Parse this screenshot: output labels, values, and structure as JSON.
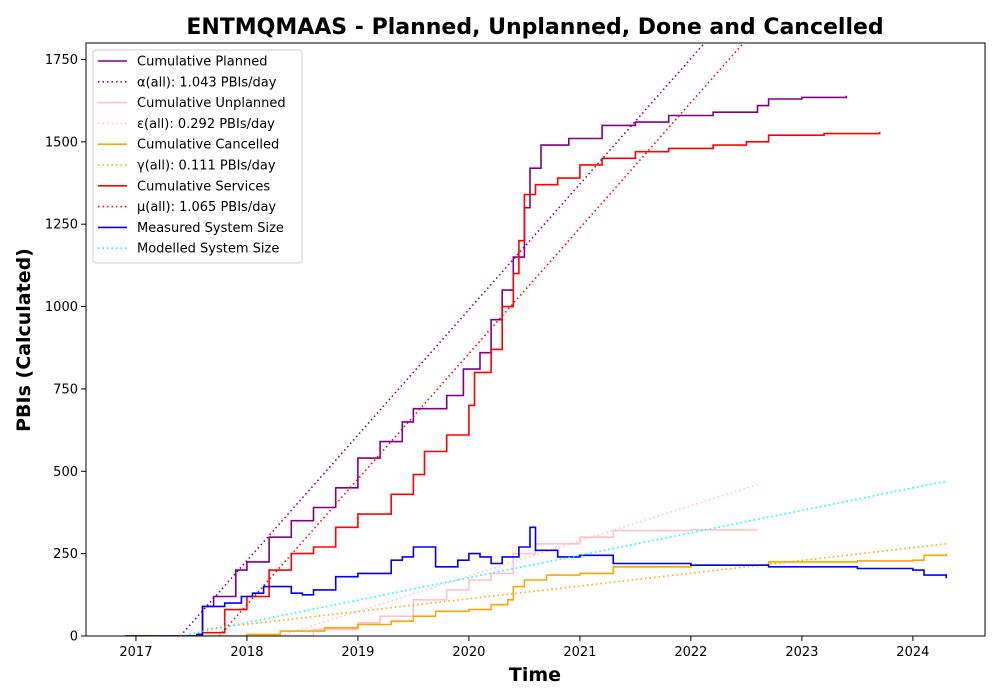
{
  "chart_data": {
    "type": "line",
    "title": "ENTMQMAAS - Planned, Unplanned, Done  and Cancelled",
    "xlabel": "Time",
    "ylabel": "PBIs (Calculated)",
    "xlim": [
      2016.55,
      2024.65
    ],
    "ylim": [
      0,
      1800
    ],
    "x_ticks": [
      2017,
      2018,
      2019,
      2020,
      2021,
      2022,
      2023,
      2024
    ],
    "x_tick_labels": [
      "2017",
      "2018",
      "2019",
      "2020",
      "2021",
      "2022",
      "2023",
      "2024"
    ],
    "y_ticks": [
      0,
      250,
      500,
      750,
      1000,
      1250,
      1500,
      1750
    ],
    "y_tick_labels": [
      "0",
      "250",
      "500",
      "750",
      "1000",
      "1250",
      "1500",
      "1750"
    ],
    "grid": false,
    "legend_position": "top-left",
    "series": [
      {
        "name": "Cumulative Planned",
        "color": "#800080",
        "style": "solid",
        "x": [
          2016.9,
          2017.55,
          2017.6,
          2017.7,
          2017.9,
          2018.0,
          2018.2,
          2018.4,
          2018.6,
          2018.8,
          2019.0,
          2019.2,
          2019.4,
          2019.5,
          2019.8,
          2019.95,
          2020.1,
          2020.2,
          2020.3,
          2020.4,
          2020.5,
          2020.55,
          2020.65,
          2020.9,
          2021.2,
          2021.5,
          2021.8,
          2022.2,
          2022.6,
          2022.7,
          2023.0,
          2023.4
        ],
        "y": [
          0,
          5,
          90,
          120,
          200,
          225,
          300,
          350,
          390,
          450,
          540,
          590,
          650,
          690,
          730,
          810,
          860,
          960,
          1050,
          1150,
          1300,
          1420,
          1490,
          1510,
          1550,
          1560,
          1580,
          1590,
          1610,
          1630,
          1635,
          1640
        ]
      },
      {
        "name": "α(all): 1.043 PBIs/day",
        "color": "#800080",
        "style": "dotted",
        "x": [
          2017.4,
          2022.15
        ],
        "y": [
          0,
          1810
        ]
      },
      {
        "name": "Cumulative Unplanned",
        "color": "#ffc0cb",
        "style": "solid",
        "x": [
          2018.3,
          2018.6,
          2019.0,
          2019.2,
          2019.5,
          2019.8,
          2020.0,
          2020.2,
          2020.4,
          2020.6,
          2021.0,
          2021.3,
          2022.0,
          2022.6
        ],
        "y": [
          0,
          20,
          40,
          60,
          110,
          140,
          170,
          190,
          250,
          280,
          300,
          320,
          322,
          322
        ]
      },
      {
        "name": "ε(all): 0.292 PBIs/day",
        "color": "#ffc0cb",
        "style": "dotted",
        "x": [
          2018.3,
          2022.6
        ],
        "y": [
          0,
          460
        ]
      },
      {
        "name": "Cumulative Cancelled",
        "color": "#ffa500",
        "style": "solid",
        "x": [
          2017.6,
          2018.0,
          2018.3,
          2018.7,
          2019.0,
          2019.3,
          2019.5,
          2019.7,
          2020.0,
          2020.2,
          2020.35,
          2020.4,
          2020.5,
          2020.7,
          2021.0,
          2021.3,
          2022.0,
          2022.7,
          2023.5,
          2024.0,
          2024.1,
          2024.3
        ],
        "y": [
          0,
          5,
          15,
          25,
          35,
          45,
          60,
          75,
          80,
          95,
          110,
          150,
          170,
          185,
          190,
          210,
          215,
          225,
          228,
          230,
          245,
          250
        ]
      },
      {
        "name": "γ(all): 0.111 PBIs/day",
        "color": "#ffa500",
        "style": "dotted",
        "x": [
          2017.6,
          2024.3
        ],
        "y": [
          20,
          280
        ]
      },
      {
        "name": "Cumulative Services",
        "color": "#ff0000",
        "style": "solid",
        "x": [
          2017.3,
          2017.6,
          2017.8,
          2018.0,
          2018.2,
          2018.4,
          2018.6,
          2018.8,
          2019.0,
          2019.3,
          2019.5,
          2019.6,
          2019.8,
          2020.0,
          2020.05,
          2020.2,
          2020.3,
          2020.4,
          2020.45,
          2020.5,
          2020.6,
          2020.8,
          2021.0,
          2021.2,
          2021.5,
          2021.8,
          2022.2,
          2022.5,
          2022.7,
          2023.2,
          2023.7
        ],
        "y": [
          0,
          10,
          80,
          120,
          200,
          250,
          270,
          330,
          370,
          430,
          490,
          560,
          610,
          700,
          800,
          870,
          1000,
          1100,
          1200,
          1340,
          1370,
          1390,
          1430,
          1450,
          1470,
          1480,
          1490,
          1500,
          1520,
          1525,
          1530
        ]
      },
      {
        "name": "μ(all): 1.065 PBIs/day",
        "color": "#ff0000",
        "style": "dotted",
        "x": [
          2017.75,
          2022.5
        ],
        "y": [
          0,
          1810
        ]
      },
      {
        "name": "Measured System Size",
        "color": "#0000ff",
        "style": "solid",
        "x": [
          2016.9,
          2017.55,
          2017.6,
          2017.8,
          2017.95,
          2018.05,
          2018.15,
          2018.4,
          2018.5,
          2018.6,
          2018.8,
          2019.0,
          2019.3,
          2019.4,
          2019.5,
          2019.7,
          2019.9,
          2020.0,
          2020.1,
          2020.2,
          2020.3,
          2020.45,
          2020.55,
          2020.6,
          2020.8,
          2021.0,
          2021.3,
          2022.0,
          2022.4,
          2022.7,
          2023.5,
          2024.0,
          2024.1,
          2024.3
        ],
        "y": [
          0,
          5,
          90,
          100,
          120,
          130,
          150,
          130,
          125,
          140,
          180,
          190,
          230,
          240,
          270,
          210,
          230,
          250,
          240,
          220,
          240,
          270,
          330,
          260,
          240,
          245,
          220,
          215,
          215,
          210,
          205,
          200,
          185,
          175
        ]
      },
      {
        "name": "Modelled System Size",
        "color": "#00ffff",
        "style": "dotted",
        "x": [
          2017.4,
          2024.3
        ],
        "y": [
          0,
          470
        ]
      }
    ]
  }
}
